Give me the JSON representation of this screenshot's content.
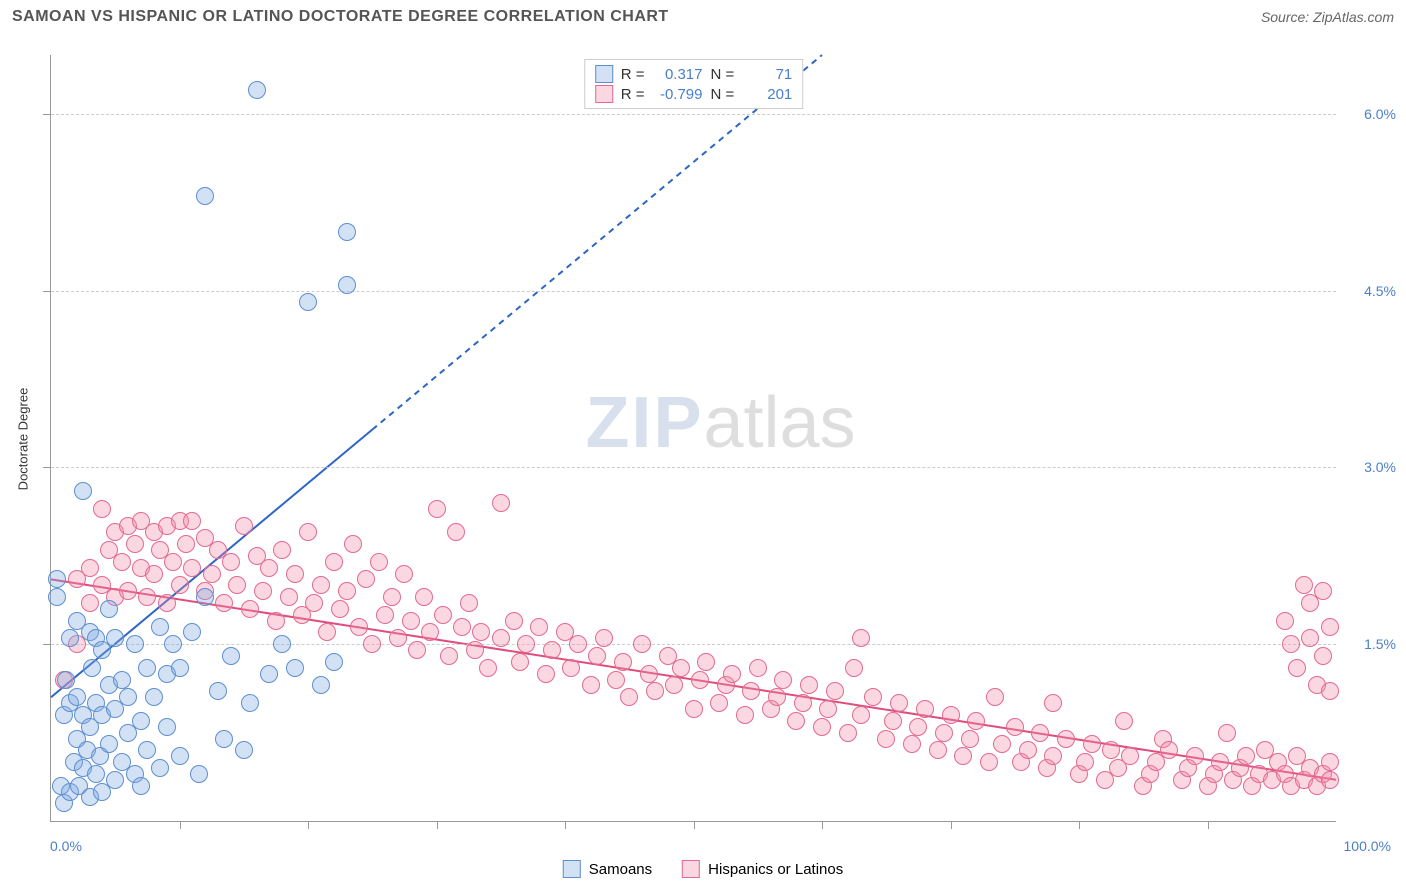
{
  "header": {
    "title": "SAMOAN VS HISPANIC OR LATINO DOCTORATE DEGREE CORRELATION CHART",
    "source_prefix": "Source: ",
    "source_name": "ZipAtlas.com"
  },
  "watermark": {
    "zip": "ZIP",
    "atlas": "atlas"
  },
  "chart": {
    "type": "scatter",
    "background_color": "#ffffff",
    "grid_color": "#cccccc",
    "axis_color": "#999999",
    "ylabel": "Doctorate Degree",
    "ylabel_fontsize": 13,
    "xlim": [
      0,
      100
    ],
    "ylim": [
      0,
      6.5
    ],
    "y_ticks": [
      1.5,
      3.0,
      4.5,
      6.0
    ],
    "y_tick_labels": [
      "1.5%",
      "3.0%",
      "4.5%",
      "6.0%"
    ],
    "x_minor_ticks": [
      10,
      20,
      30,
      40,
      50,
      60,
      70,
      80,
      90
    ],
    "x_corner_left": "0.0%",
    "x_corner_right": "100.0%",
    "tick_label_color": "#4a7fc9",
    "marker_radius": 9,
    "marker_border_width": 1,
    "series": {
      "samoans": {
        "label": "Samoans",
        "fill": "rgba(130,170,225,0.35)",
        "stroke": "#5d8fd0",
        "R_label": "R =",
        "R_value": "0.317",
        "N_label": "N =",
        "N_value": "71",
        "trend": {
          "x1": 0,
          "y1": 1.05,
          "x2": 60,
          "y2": 6.5,
          "solid_until_x": 25,
          "color": "#2d66c4",
          "width": 2
        },
        "points": [
          [
            0.5,
            1.9
          ],
          [
            0.5,
            2.05
          ],
          [
            0.8,
            0.3
          ],
          [
            1,
            0.9
          ],
          [
            1,
            0.15
          ],
          [
            1.2,
            1.2
          ],
          [
            1.5,
            1.0
          ],
          [
            1.5,
            0.25
          ],
          [
            1.5,
            1.55
          ],
          [
            1.8,
            0.5
          ],
          [
            2,
            1.7
          ],
          [
            2,
            0.7
          ],
          [
            2,
            1.05
          ],
          [
            2.2,
            0.3
          ],
          [
            2.5,
            2.8
          ],
          [
            2.5,
            0.9
          ],
          [
            2.5,
            0.45
          ],
          [
            2.8,
            0.6
          ],
          [
            3,
            1.6
          ],
          [
            3,
            0.2
          ],
          [
            3,
            0.8
          ],
          [
            3.2,
            1.3
          ],
          [
            3.5,
            1.55
          ],
          [
            3.5,
            0.4
          ],
          [
            3.5,
            1.0
          ],
          [
            3.8,
            0.55
          ],
          [
            4,
            0.9
          ],
          [
            4,
            1.45
          ],
          [
            4,
            0.25
          ],
          [
            4.5,
            1.15
          ],
          [
            4.5,
            0.65
          ],
          [
            4.5,
            1.8
          ],
          [
            5,
            0.35
          ],
          [
            5,
            0.95
          ],
          [
            5,
            1.55
          ],
          [
            5.5,
            0.5
          ],
          [
            5.5,
            1.2
          ],
          [
            6,
            0.75
          ],
          [
            6,
            1.05
          ],
          [
            6.5,
            0.4
          ],
          [
            6.5,
            1.5
          ],
          [
            7,
            0.85
          ],
          [
            7,
            0.3
          ],
          [
            7.5,
            1.3
          ],
          [
            7.5,
            0.6
          ],
          [
            8,
            1.05
          ],
          [
            8.5,
            0.45
          ],
          [
            8.5,
            1.65
          ],
          [
            9,
            0.8
          ],
          [
            9,
            1.25
          ],
          [
            9.5,
            1.5
          ],
          [
            10,
            1.3
          ],
          [
            10,
            0.55
          ],
          [
            11,
            1.6
          ],
          [
            11.5,
            0.4
          ],
          [
            12,
            1.9
          ],
          [
            12,
            5.3
          ],
          [
            13,
            1.1
          ],
          [
            13.5,
            0.7
          ],
          [
            14,
            1.4
          ],
          [
            15,
            0.6
          ],
          [
            15.5,
            1.0
          ],
          [
            16,
            6.2
          ],
          [
            17,
            1.25
          ],
          [
            18,
            1.5
          ],
          [
            19,
            1.3
          ],
          [
            20,
            4.4
          ],
          [
            21,
            1.15
          ],
          [
            22,
            1.35
          ],
          [
            23,
            5.0
          ],
          [
            23,
            4.55
          ]
        ]
      },
      "hispanics": {
        "label": "Hispanics or Latinos",
        "fill": "rgba(240,140,170,0.35)",
        "stroke": "#e36a93",
        "R_label": "R =",
        "R_value": "-0.799",
        "N_label": "N =",
        "N_value": "201",
        "trend": {
          "x1": 0,
          "y1": 2.05,
          "x2": 100,
          "y2": 0.35,
          "color": "#e04d7c",
          "width": 2
        },
        "points": [
          [
            1,
            1.2
          ],
          [
            2,
            2.05
          ],
          [
            2,
            1.5
          ],
          [
            3,
            2.15
          ],
          [
            3,
            1.85
          ],
          [
            4,
            2.65
          ],
          [
            4,
            2.0
          ],
          [
            4.5,
            2.3
          ],
          [
            5,
            1.9
          ],
          [
            5,
            2.45
          ],
          [
            5.5,
            2.2
          ],
          [
            6,
            2.5
          ],
          [
            6,
            1.95
          ],
          [
            6.5,
            2.35
          ],
          [
            7,
            2.15
          ],
          [
            7,
            2.55
          ],
          [
            7.5,
            1.9
          ],
          [
            8,
            2.45
          ],
          [
            8,
            2.1
          ],
          [
            8.5,
            2.3
          ],
          [
            9,
            2.5
          ],
          [
            9,
            1.85
          ],
          [
            9.5,
            2.2
          ],
          [
            10,
            2.55
          ],
          [
            10,
            2.0
          ],
          [
            10.5,
            2.35
          ],
          [
            11,
            2.15
          ],
          [
            11,
            2.55
          ],
          [
            12,
            1.95
          ],
          [
            12,
            2.4
          ],
          [
            12.5,
            2.1
          ],
          [
            13,
            2.3
          ],
          [
            13.5,
            1.85
          ],
          [
            14,
            2.2
          ],
          [
            14.5,
            2.0
          ],
          [
            15,
            2.5
          ],
          [
            15.5,
            1.8
          ],
          [
            16,
            2.25
          ],
          [
            16.5,
            1.95
          ],
          [
            17,
            2.15
          ],
          [
            17.5,
            1.7
          ],
          [
            18,
            2.3
          ],
          [
            18.5,
            1.9
          ],
          [
            19,
            2.1
          ],
          [
            19.5,
            1.75
          ],
          [
            20,
            2.45
          ],
          [
            20.5,
            1.85
          ],
          [
            21,
            2.0
          ],
          [
            21.5,
            1.6
          ],
          [
            22,
            2.2
          ],
          [
            22.5,
            1.8
          ],
          [
            23,
            1.95
          ],
          [
            23.5,
            2.35
          ],
          [
            24,
            1.65
          ],
          [
            24.5,
            2.05
          ],
          [
            25,
            1.5
          ],
          [
            25.5,
            2.2
          ],
          [
            26,
            1.75
          ],
          [
            26.5,
            1.9
          ],
          [
            27,
            1.55
          ],
          [
            27.5,
            2.1
          ],
          [
            28,
            1.7
          ],
          [
            28.5,
            1.45
          ],
          [
            29,
            1.9
          ],
          [
            29.5,
            1.6
          ],
          [
            30,
            2.65
          ],
          [
            30.5,
            1.75
          ],
          [
            31,
            1.4
          ],
          [
            31.5,
            2.45
          ],
          [
            32,
            1.65
          ],
          [
            32.5,
            1.85
          ],
          [
            33,
            1.45
          ],
          [
            33.5,
            1.6
          ],
          [
            34,
            1.3
          ],
          [
            35,
            2.7
          ],
          [
            35,
            1.55
          ],
          [
            36,
            1.7
          ],
          [
            36.5,
            1.35
          ],
          [
            37,
            1.5
          ],
          [
            38,
            1.65
          ],
          [
            38.5,
            1.25
          ],
          [
            39,
            1.45
          ],
          [
            40,
            1.6
          ],
          [
            40.5,
            1.3
          ],
          [
            41,
            1.5
          ],
          [
            42,
            1.15
          ],
          [
            42.5,
            1.4
          ],
          [
            43,
            1.55
          ],
          [
            44,
            1.2
          ],
          [
            44.5,
            1.35
          ],
          [
            45,
            1.05
          ],
          [
            46,
            1.5
          ],
          [
            46.5,
            1.25
          ],
          [
            47,
            1.1
          ],
          [
            48,
            1.4
          ],
          [
            48.5,
            1.15
          ],
          [
            49,
            1.3
          ],
          [
            50,
            0.95
          ],
          [
            50.5,
            1.2
          ],
          [
            51,
            1.35
          ],
          [
            52,
            1.0
          ],
          [
            52.5,
            1.15
          ],
          [
            53,
            1.25
          ],
          [
            54,
            0.9
          ],
          [
            54.5,
            1.1
          ],
          [
            55,
            1.3
          ],
          [
            56,
            0.95
          ],
          [
            56.5,
            1.05
          ],
          [
            57,
            1.2
          ],
          [
            58,
            0.85
          ],
          [
            58.5,
            1.0
          ],
          [
            59,
            1.15
          ],
          [
            60,
            0.8
          ],
          [
            60.5,
            0.95
          ],
          [
            61,
            1.1
          ],
          [
            62,
            0.75
          ],
          [
            62.5,
            1.3
          ],
          [
            63,
            0.9
          ],
          [
            63,
            1.55
          ],
          [
            64,
            1.05
          ],
          [
            65,
            0.7
          ],
          [
            65.5,
            0.85
          ],
          [
            66,
            1.0
          ],
          [
            67,
            0.65
          ],
          [
            67.5,
            0.8
          ],
          [
            68,
            0.95
          ],
          [
            69,
            0.6
          ],
          [
            69.5,
            0.75
          ],
          [
            70,
            0.9
          ],
          [
            71,
            0.55
          ],
          [
            71.5,
            0.7
          ],
          [
            72,
            0.85
          ],
          [
            73,
            0.5
          ],
          [
            73.5,
            1.05
          ],
          [
            74,
            0.65
          ],
          [
            75,
            0.8
          ],
          [
            75.5,
            0.5
          ],
          [
            76,
            0.6
          ],
          [
            77,
            0.75
          ],
          [
            77.5,
            0.45
          ],
          [
            78,
            0.55
          ],
          [
            78,
            1.0
          ],
          [
            79,
            0.7
          ],
          [
            80,
            0.4
          ],
          [
            80.5,
            0.5
          ],
          [
            81,
            0.65
          ],
          [
            82,
            0.35
          ],
          [
            82.5,
            0.6
          ],
          [
            83,
            0.45
          ],
          [
            83.5,
            0.85
          ],
          [
            84,
            0.55
          ],
          [
            85,
            0.3
          ],
          [
            85.5,
            0.4
          ],
          [
            86,
            0.5
          ],
          [
            86.5,
            0.7
          ],
          [
            87,
            0.6
          ],
          [
            88,
            0.35
          ],
          [
            88.5,
            0.45
          ],
          [
            89,
            0.55
          ],
          [
            90,
            0.3
          ],
          [
            90.5,
            0.4
          ],
          [
            91,
            0.5
          ],
          [
            91.5,
            0.75
          ],
          [
            92,
            0.35
          ],
          [
            92.5,
            0.45
          ],
          [
            93,
            0.55
          ],
          [
            93.5,
            0.3
          ],
          [
            94,
            0.4
          ],
          [
            94.5,
            0.6
          ],
          [
            95,
            0.35
          ],
          [
            95.5,
            0.5
          ],
          [
            96,
            1.7
          ],
          [
            96,
            0.4
          ],
          [
            96.5,
            1.5
          ],
          [
            96.5,
            0.3
          ],
          [
            97,
            1.3
          ],
          [
            97,
            0.55
          ],
          [
            97.5,
            2.0
          ],
          [
            97.5,
            0.35
          ],
          [
            98,
            1.85
          ],
          [
            98,
            0.45
          ],
          [
            98,
            1.55
          ],
          [
            98.5,
            0.3
          ],
          [
            98.5,
            1.15
          ],
          [
            99,
            1.4
          ],
          [
            99,
            0.4
          ],
          [
            99,
            1.95
          ],
          [
            99.5,
            0.5
          ],
          [
            99.5,
            1.1
          ],
          [
            99.5,
            0.35
          ],
          [
            99.5,
            1.65
          ]
        ]
      }
    }
  },
  "bottom_legend": {
    "items": [
      {
        "key": "samoans"
      },
      {
        "key": "hispanics"
      }
    ]
  }
}
